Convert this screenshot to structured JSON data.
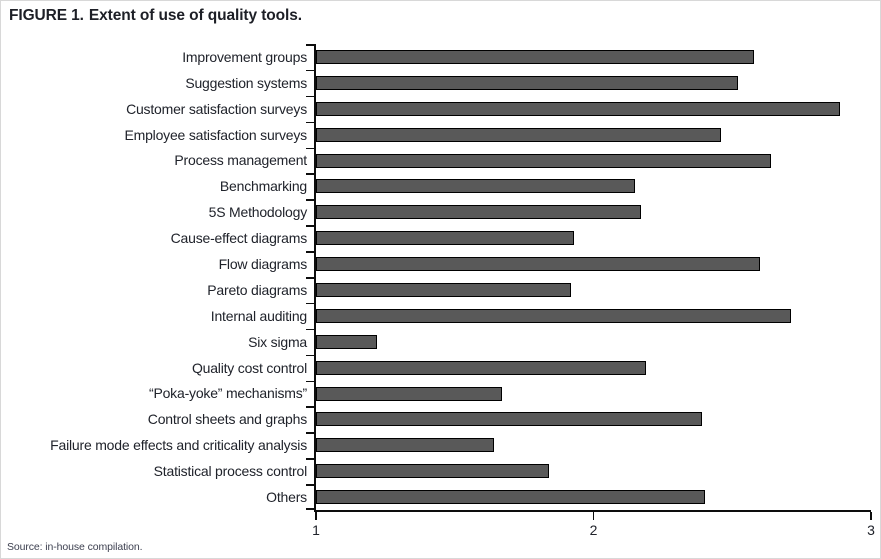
{
  "figure": {
    "title_prefix": "FIGURE 1.",
    "title": "Extent of use of quality tools.",
    "source": "Source: in-house compilation."
  },
  "chart_data": {
    "type": "bar",
    "orientation": "horizontal",
    "title": "FIGURE 1. Extent of use of quality tools.",
    "xlabel": "",
    "ylabel": "",
    "xlim": [
      1,
      3
    ],
    "x_ticks": [
      1,
      2,
      3
    ],
    "grid": false,
    "legend": false,
    "bar_color": "#595959",
    "bar_border_color": "#000000",
    "categories": [
      "Improvement groups",
      "Suggestion systems",
      "Customer satisfaction surveys",
      "Employee satisfaction surveys",
      "Process management",
      "Benchmarking",
      "5S Methodology",
      "Cause-effect diagrams",
      "Flow diagrams",
      "Pareto diagrams",
      "Internal auditing",
      "Six sigma",
      "Quality cost control",
      "“Poka-yoke”  mechanisms”",
      "Control sheets and graphs",
      "Failure mode effects and criticality analysis",
      "Statistical process control",
      "Others"
    ],
    "values": [
      2.58,
      2.52,
      2.89,
      2.46,
      2.64,
      2.15,
      2.17,
      1.93,
      2.6,
      1.92,
      2.71,
      1.22,
      2.19,
      1.67,
      2.39,
      1.64,
      1.84,
      2.4
    ]
  }
}
